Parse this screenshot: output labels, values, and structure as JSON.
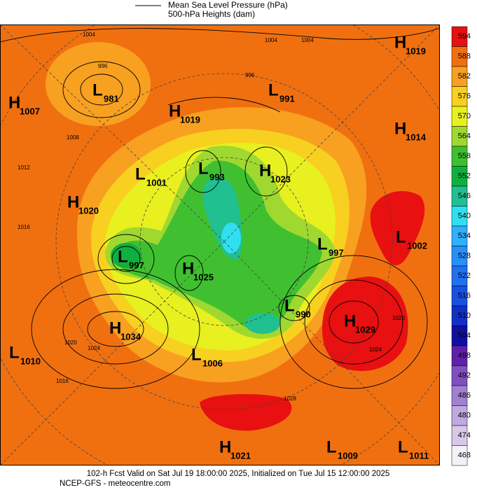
{
  "legend": {
    "pressure": "Mean Sea Level Pressure (hPa)",
    "heights": "500-hPa Heights (dam)"
  },
  "pressure_centers": [
    {
      "type": "H",
      "value": 1019
    },
    {
      "type": "H",
      "value": 1007
    },
    {
      "type": "L",
      "value": 981
    },
    {
      "type": "L",
      "value": 991
    },
    {
      "type": "H",
      "value": 1019
    },
    {
      "type": "H",
      "value": 1014
    },
    {
      "type": "L",
      "value": 1001
    },
    {
      "type": "L",
      "value": 993
    },
    {
      "type": "H",
      "value": 1023
    },
    {
      "type": "H",
      "value": 1020
    },
    {
      "type": "L",
      "value": 1002
    },
    {
      "type": "L",
      "value": 997
    },
    {
      "type": "L",
      "value": 997
    },
    {
      "type": "H",
      "value": 1025
    },
    {
      "type": "L",
      "value": 990
    },
    {
      "type": "H",
      "value": 1029
    },
    {
      "type": "H",
      "value": 1034
    },
    {
      "type": "L",
      "value": 1010
    },
    {
      "type": "L",
      "value": 1006
    },
    {
      "type": "H",
      "value": 1021
    },
    {
      "type": "L",
      "value": 1009
    },
    {
      "type": "L",
      "value": 1011
    }
  ],
  "isobar_labels": [
    1004,
    1004,
    1004,
    996,
    996,
    1008,
    1012,
    1016,
    1020,
    1024,
    1016,
    1020,
    1024,
    1028
  ],
  "colorbar": {
    "values": [
      594,
      588,
      582,
      576,
      570,
      564,
      558,
      552,
      546,
      540,
      534,
      528,
      522,
      516,
      510,
      504,
      498,
      492,
      486,
      480,
      474,
      468
    ],
    "colors": [
      "#e81010",
      "#f07010",
      "#f8a020",
      "#f8d020",
      "#e8f020",
      "#a0d830",
      "#40c030",
      "#10b040",
      "#20c090",
      "#30e0f0",
      "#30b0ff",
      "#2890f8",
      "#2070f0",
      "#1850e0",
      "#1030c8",
      "#1010a0",
      "#6020a8",
      "#8050c0",
      "#a080d0",
      "#c0a8e0",
      "#d8c8e8",
      "#f4f0f8"
    ]
  },
  "footer": {
    "line1": "102-h Fcst Valid on Sat Jul 19 18:00:00 2025, Initialized on Tue Jul 15 12:00:00 2025",
    "line2": "NCEP-GFS  - meteocentre.com"
  }
}
